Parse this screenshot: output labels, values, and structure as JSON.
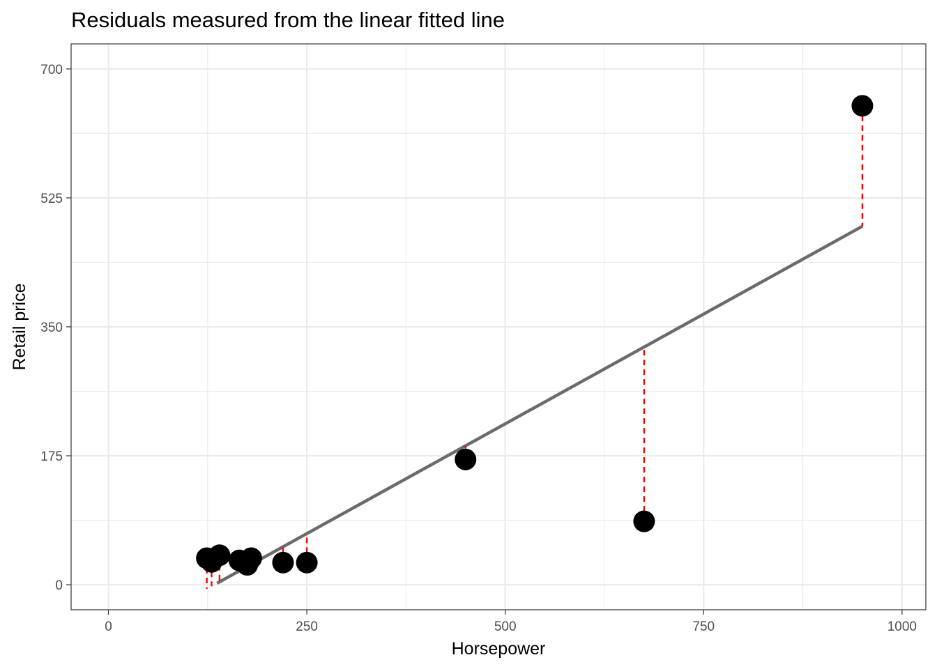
{
  "chart_data": {
    "type": "scatter",
    "title": "Residuals measured from the linear fitted line",
    "xlabel": "Horsepower",
    "ylabel": "Retail price",
    "xlim": [
      -47,
      1030
    ],
    "ylim": [
      -34,
      734
    ],
    "x_ticks": [
      0,
      250,
      500,
      750,
      1000
    ],
    "y_ticks": [
      0,
      175,
      350,
      525,
      700
    ],
    "x_tick_labels": [
      "0",
      "250",
      "500",
      "750",
      "1000"
    ],
    "y_tick_labels": [
      "0",
      "175",
      "350",
      "525",
      "700"
    ],
    "grid": true,
    "points": [
      {
        "x": 124,
        "y": 36
      },
      {
        "x": 130,
        "y": 31
      },
      {
        "x": 140,
        "y": 40
      },
      {
        "x": 165,
        "y": 33
      },
      {
        "x": 175,
        "y": 27
      },
      {
        "x": 180,
        "y": 36
      },
      {
        "x": 220,
        "y": 30
      },
      {
        "x": 250,
        "y": 30
      },
      {
        "x": 450,
        "y": 170
      },
      {
        "x": 675,
        "y": 86
      },
      {
        "x": 950,
        "y": 650
      }
    ],
    "fit_line": {
      "x_start": 137,
      "x_end": 950,
      "slope": 0.5959,
      "intercept": -79.6
    },
    "colors": {
      "points": "#000000",
      "fit_line": "#6b6b6b",
      "residuals": "#ff0000"
    }
  }
}
